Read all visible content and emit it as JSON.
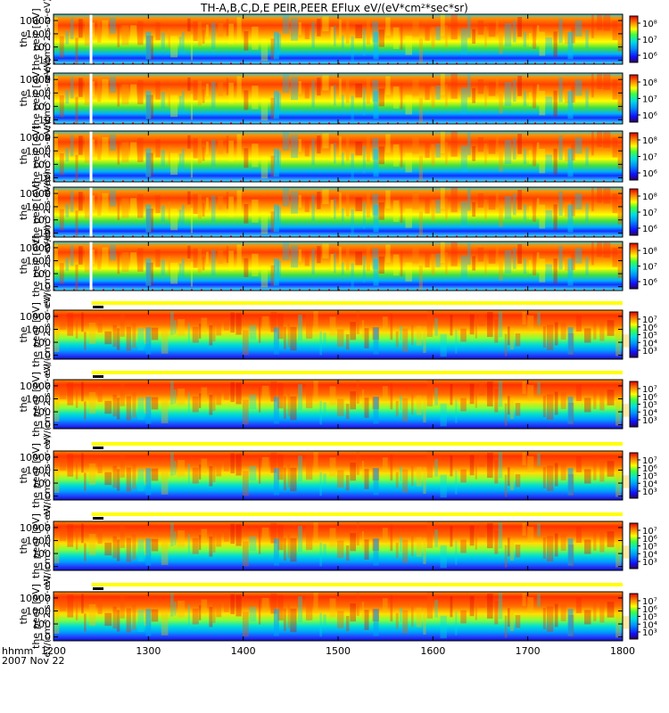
{
  "chart_data": {
    "type": "heatmap",
    "title": "TH-A,B,C,D,E  PEIR,PEER  EFlux  eV/(eV*cm²*sec*sr)",
    "xlabel": "hhmm",
    "date_label": "2007 Nov 22",
    "x_ticks": [
      "1200",
      "1300",
      "1400",
      "1500",
      "1600",
      "1700",
      "1800"
    ],
    "x_range": [
      1200,
      1800
    ],
    "y_ticks": [
      "10",
      "100",
      "1000",
      "10000"
    ],
    "y_range": [
      5,
      30000
    ],
    "ylabel_species_top": "the",
    "ion_panels": [
      {
        "name": "THA PEIR",
        "ylabel": "the peir [eV]",
        "units": "eV/(cm^2-s-sr-eV)",
        "colorbar_ticks": [
          "10⁸",
          "10⁷",
          "10⁶"
        ]
      },
      {
        "name": "THB PEIR",
        "ylabel": "the peir [eV]",
        "units": "eV/(cm^2-s-sr-eV)",
        "colorbar_ticks": [
          "10⁸",
          "10⁷",
          "10⁶"
        ]
      },
      {
        "name": "THC PEIR",
        "ylabel": "the peir [eV]",
        "units": "eV/(cm^2-s-sr-eV)",
        "colorbar_ticks": [
          "10⁸",
          "10⁷",
          "10⁶"
        ]
      },
      {
        "name": "THD PEIR",
        "ylabel": "the peir [eV]",
        "units": "eV/(cm^2-s-sr-eV)",
        "colorbar_ticks": [
          "10⁸",
          "10⁷",
          "10⁶"
        ]
      },
      {
        "name": "THE PEIR",
        "ylabel": "the peir [eV]",
        "units": "eV/(cm^2-s-sr-eV)",
        "colorbar_ticks": [
          "10⁸",
          "10⁷",
          "10⁶"
        ]
      }
    ],
    "electron_panels": [
      {
        "name": "THA PEER",
        "ylabel": "the peer [eV]",
        "units": "eV/(cm^2-s-sr-eV)",
        "colorbar_ticks": [
          "10⁷",
          "10⁶",
          "10⁵",
          "10⁴",
          "10³"
        ]
      },
      {
        "name": "THB PEER",
        "ylabel": "the peer [eV]",
        "units": "eV/(cm^2-s-sr-eV)",
        "colorbar_ticks": [
          "10⁷",
          "10⁶",
          "10⁵",
          "10⁴",
          "10³"
        ]
      },
      {
        "name": "THC PEER",
        "ylabel": "the peer [eV]",
        "units": "eV/(cm^2-s-sr-eV)",
        "colorbar_ticks": [
          "10⁷",
          "10⁶",
          "10⁵",
          "10⁴",
          "10³"
        ]
      },
      {
        "name": "THD PEER",
        "ylabel": "the peer [eV]",
        "units": "eV/(cm^2-s-sr-eV)",
        "colorbar_ticks": [
          "10⁷",
          "10⁶",
          "10⁵",
          "10⁴",
          "10³"
        ]
      },
      {
        "name": "THE PEER",
        "ylabel": "the peer [eV]",
        "units": "eV/(cm^2-s-sr-eV)",
        "colorbar_ticks": [
          "10⁷",
          "10⁶",
          "10⁵",
          "10⁴",
          "10³"
        ]
      }
    ],
    "mode_bar": {
      "colors": {
        "slow": "#e00000",
        "fast": "#ffff00",
        "black": "#000000"
      },
      "slow_until": 1240
    },
    "data_gap_time": 1240
  }
}
